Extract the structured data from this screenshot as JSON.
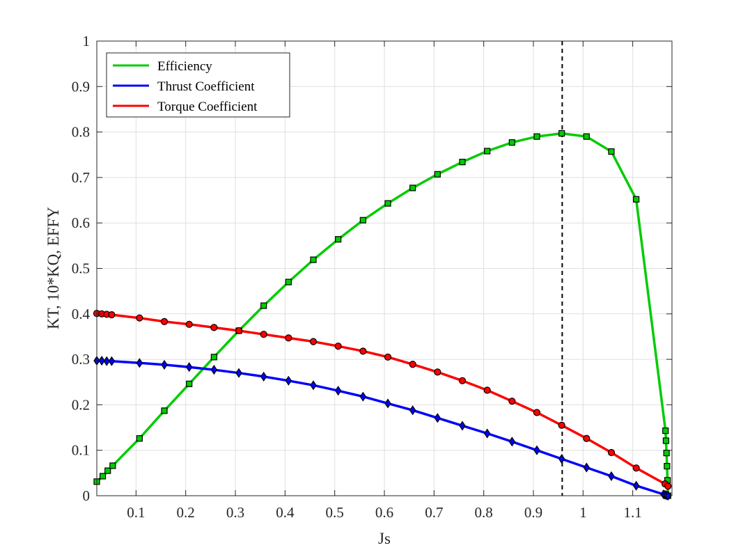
{
  "chart_data": {
    "type": "line",
    "xlabel": "Js",
    "ylabel": "KT, 10*KQ, EFFY",
    "xlim": [
      0.021,
      1.179
    ],
    "ylim": [
      0,
      1
    ],
    "xticks": [
      0.1,
      0.2,
      0.3,
      0.4,
      0.5,
      0.6,
      0.7,
      0.8,
      0.9,
      1,
      1.1
    ],
    "yticks": [
      0,
      0.1,
      0.2,
      0.3,
      0.4,
      0.5,
      0.6,
      0.7,
      0.8,
      0.9,
      1
    ],
    "grid": true,
    "legend_position": "top-left",
    "reference_line": {
      "x": 0.958,
      "style": "dashed",
      "color": "#000000"
    },
    "series": [
      {
        "name": "Efficiency",
        "color": "#00cc00",
        "marker": "square",
        "x": [
          0.021,
          0.033,
          0.043,
          0.053,
          0.107,
          0.157,
          0.207,
          0.257,
          0.307,
          0.357,
          0.407,
          0.457,
          0.507,
          0.557,
          0.607,
          0.657,
          0.707,
          0.757,
          0.807,
          0.857,
          0.907,
          0.957,
          1.007,
          1.057,
          1.107,
          1.166,
          1.167,
          1.168,
          1.169,
          1.17,
          1.171
        ],
        "values": [
          0.031,
          0.043,
          0.055,
          0.066,
          0.126,
          0.187,
          0.246,
          0.305,
          0.363,
          0.418,
          0.47,
          0.519,
          0.564,
          0.606,
          0.643,
          0.677,
          0.707,
          0.734,
          0.758,
          0.777,
          0.79,
          0.797,
          0.79,
          0.757,
          0.652,
          0.143,
          0.121,
          0.094,
          0.065,
          0.034,
          0.0
        ]
      },
      {
        "name": "Thrust Coefficient",
        "color": "#0000ff",
        "marker": "diamond",
        "x": [
          0.021,
          0.031,
          0.041,
          0.051,
          0.107,
          0.157,
          0.207,
          0.257,
          0.307,
          0.357,
          0.407,
          0.457,
          0.507,
          0.557,
          0.607,
          0.657,
          0.707,
          0.757,
          0.807,
          0.857,
          0.907,
          0.957,
          1.007,
          1.057,
          1.107,
          1.162,
          1.165,
          1.168,
          1.171
        ],
        "values": [
          0.297,
          0.297,
          0.296,
          0.296,
          0.292,
          0.288,
          0.283,
          0.277,
          0.27,
          0.262,
          0.253,
          0.243,
          0.231,
          0.218,
          0.203,
          0.188,
          0.171,
          0.154,
          0.137,
          0.119,
          0.1,
          0.081,
          0.062,
          0.043,
          0.022,
          0.003,
          0.002,
          0.001,
          0.0
        ]
      },
      {
        "name": "Torque Coefficient",
        "color": "#ff0000",
        "marker": "circle",
        "x": [
          0.021,
          0.031,
          0.041,
          0.051,
          0.107,
          0.157,
          0.207,
          0.257,
          0.307,
          0.357,
          0.407,
          0.457,
          0.507,
          0.557,
          0.607,
          0.657,
          0.707,
          0.757,
          0.807,
          0.857,
          0.907,
          0.957,
          1.007,
          1.057,
          1.107,
          1.165,
          1.171
        ],
        "values": [
          0.401,
          0.4,
          0.399,
          0.398,
          0.391,
          0.383,
          0.377,
          0.37,
          0.363,
          0.355,
          0.347,
          0.339,
          0.329,
          0.318,
          0.305,
          0.289,
          0.272,
          0.253,
          0.232,
          0.208,
          0.183,
          0.155,
          0.126,
          0.095,
          0.061,
          0.026,
          0.021
        ]
      }
    ]
  }
}
